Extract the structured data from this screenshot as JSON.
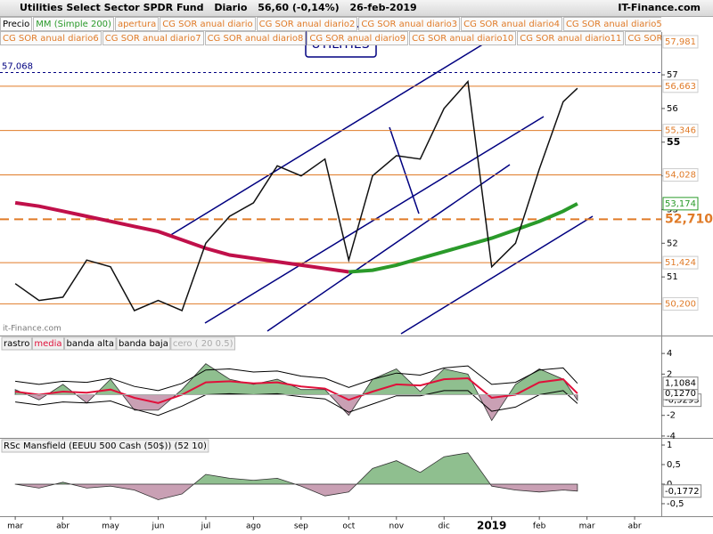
{
  "header": {
    "title": "Utilities Select Sector SPDR Fund",
    "period": "Diario",
    "quote": "56,60 (-0,14%)",
    "date": "26-feb-2019",
    "source": "IT-Finance.com"
  },
  "tab_color": "#e07b28",
  "tabs": [
    [
      "apertura",
      "CG SOR anual diario",
      "CG SOR anual diario2",
      "CG SOR anual diario3",
      "CG SOR anual diario4",
      "CG SOR anual diario5"
    ],
    [
      "CG SOR anual diario6",
      "CG SOR anual diario7",
      "CG SOR anual diario8",
      "CG SOR anual diario9",
      "CG SOR anual diario10",
      "CG SOR anual diario11",
      "CG SOR anual"
    ]
  ],
  "chart_data": [
    {
      "type": "line",
      "logo": "UTILITIES",
      "watermark": "it-Finance.com",
      "x": [
        0,
        0.5,
        1,
        1.5,
        2,
        2.5,
        3,
        3.5,
        4,
        4.5,
        5,
        5.5,
        6,
        6.5,
        7,
        7.5,
        8,
        8.5,
        9,
        9.5,
        10,
        10.5,
        11,
        11.5,
        11.8
      ],
      "xlim": [
        -0.32,
        13.56
      ],
      "ylim": [
        49.26,
        58.27
      ],
      "yticks": [
        51,
        52,
        53,
        54,
        55,
        56,
        57
      ],
      "series": [
        {
          "name": "Precio",
          "color": "#111111",
          "values": [
            50.8,
            50.3,
            50.4,
            51.5,
            51.3,
            50.0,
            50.3,
            50.0,
            52.0,
            52.8,
            53.2,
            54.3,
            54.0,
            54.5,
            51.5,
            54.0,
            54.6,
            54.5,
            56.0,
            56.8,
            51.3,
            52.0,
            54.2,
            56.2,
            56.6
          ]
        },
        {
          "name": "MM (Simple 200)",
          "color": "#c0104a",
          "color_rising": "#2a9a2a",
          "values": [
            53.2,
            53.1,
            52.95,
            52.8,
            52.65,
            52.5,
            52.35,
            52.1,
            51.85,
            51.65,
            51.55,
            51.45,
            51.35,
            51.25,
            51.15,
            51.2,
            51.35,
            51.55,
            51.75,
            51.95,
            52.15,
            52.4,
            52.65,
            52.95,
            53.174
          ]
        }
      ],
      "levels": [
        {
          "value": 57.981,
          "label": "57,981",
          "color": "#e07b28",
          "line": "none",
          "side": "right"
        },
        {
          "value": 57.068,
          "label": "57,068",
          "color": "#000080",
          "line": "dotted",
          "side": "left"
        },
        {
          "value": 56.663,
          "label": "56,663",
          "color": "#e07b28",
          "line": "solid",
          "side": "right"
        },
        {
          "value": 55.346,
          "label": "55,346",
          "color": "#e07b28",
          "line": "solid",
          "side": "right"
        },
        {
          "value": 54.028,
          "label": "54,028",
          "color": "#e07b28",
          "line": "solid",
          "side": "right"
        },
        {
          "value": 53.174,
          "label": "53,174",
          "color": "#2a9a2a",
          "line": "none",
          "side": "right",
          "boxed": true
        },
        {
          "value": 52.71,
          "label": "52,710",
          "color": "#e07b28",
          "line": "dashed",
          "side": "right",
          "emphasis": true
        },
        {
          "value": 51.424,
          "label": "51,424",
          "color": "#e07b28",
          "line": "solid",
          "side": "right"
        },
        {
          "value": 50.2,
          "label": "50,200",
          "color": "#e07b28",
          "line": "solid",
          "side": "right"
        }
      ]
    },
    {
      "type": "area",
      "x": [
        0,
        0.5,
        1,
        1.5,
        2,
        2.5,
        3,
        3.5,
        4,
        4.5,
        5,
        5.5,
        6,
        6.5,
        7,
        7.5,
        8,
        8.5,
        9,
        9.5,
        10,
        10.5,
        11,
        11.5,
        11.8
      ],
      "xlim": [
        -0.32,
        13.56
      ],
      "ylim": [
        -4.18,
        5.65
      ],
      "yticks": [
        4,
        2,
        -2,
        -4
      ],
      "series": [
        {
          "name": "rastro",
          "color": "#8fbf8f",
          "color_negative": "#c9a0b4",
          "values": [
            0.5,
            -0.5,
            1,
            -0.8,
            1.5,
            -1.5,
            -1.5,
            0.5,
            3,
            1.5,
            1,
            1.5,
            0.5,
            0.5,
            -2,
            1.5,
            2.5,
            0.3,
            2.5,
            2,
            -2.5,
            1,
            2.5,
            1.5,
            -0.5293
          ],
          "last_label": "-0,5293"
        },
        {
          "name": "media",
          "color": "#e0103a",
          "values": [
            0.3,
            0,
            0.3,
            0.2,
            0.5,
            -0.3,
            -0.8,
            0,
            1.2,
            1.3,
            1.1,
            1.2,
            0.8,
            0.6,
            -0.5,
            0.3,
            1,
            0.9,
            1.5,
            1.6,
            -0.3,
            0,
            1.2,
            1.5,
            0.127
          ],
          "last_label": "0,1270"
        },
        {
          "name": "banda alta",
          "color": "#000000",
          "values": [
            1.3,
            1,
            1.3,
            1.2,
            1.6,
            0.8,
            0.4,
            1.1,
            2.4,
            2.5,
            2.2,
            2.3,
            1.8,
            1.6,
            0.7,
            1.5,
            2.1,
            1.9,
            2.6,
            2.8,
            1,
            1.2,
            2.4,
            2.6,
            1.1084
          ],
          "last_label": "1,1084"
        },
        {
          "name": "banda baja",
          "color": "#000000",
          "values": [
            -0.7,
            -1,
            -0.7,
            -0.8,
            -0.6,
            -1.4,
            -2,
            -1.1,
            0,
            0.1,
            0,
            0.1,
            -0.2,
            -0.4,
            -1.7,
            -0.9,
            -0.1,
            -0.1,
            0.4,
            0.4,
            -1.6,
            -1.2,
            0,
            0.4,
            -0.854
          ]
        },
        {
          "name": "cero ( 20 0.5)",
          "color": "#aaaaaa",
          "values": [
            0,
            0,
            0,
            0,
            0,
            0,
            0,
            0,
            0,
            0,
            0,
            0,
            0,
            0,
            0,
            0,
            0,
            0,
            0,
            0,
            0,
            0,
            0,
            0,
            0
          ]
        }
      ]
    },
    {
      "type": "area",
      "title": "RSc Mansfield (EEUU 500 Cash (50$)) (52 10)",
      "x": [
        0,
        0.5,
        1,
        1.5,
        2,
        2.5,
        3,
        3.5,
        4,
        4.5,
        5,
        5.5,
        6,
        6.5,
        7,
        7.5,
        8,
        8.5,
        9,
        9.5,
        10,
        10.5,
        11,
        11.5,
        11.8
      ],
      "xlim": [
        -0.32,
        13.56
      ],
      "ylim": [
        -0.82,
        1.16
      ],
      "yticks": [
        1,
        {
          "value": 0.5,
          "label": "0,5"
        },
        0,
        {
          "value": -0.5,
          "label": "-0,5"
        }
      ],
      "xticks": [
        {
          "value": 0,
          "label": "mar"
        },
        {
          "value": 1,
          "label": "abr"
        },
        {
          "value": 2,
          "label": "may"
        },
        {
          "value": 3,
          "label": "jun"
        },
        {
          "value": 4,
          "label": "jul"
        },
        {
          "value": 5,
          "label": "ago"
        },
        {
          "value": 6,
          "label": "sep"
        },
        {
          "value": 7,
          "label": "oct"
        },
        {
          "value": 8,
          "label": "nov"
        },
        {
          "value": 9,
          "label": "dic"
        },
        {
          "value": 10,
          "label": "2019"
        },
        {
          "value": 11,
          "label": "feb"
        },
        {
          "value": 12,
          "label": "mar"
        },
        {
          "value": 13,
          "label": "abr"
        }
      ],
      "series": [
        {
          "color": "#8fbf8f",
          "color_negative": "#c9a0b4",
          "values": [
            0,
            -0.1,
            0.05,
            -0.1,
            -0.05,
            -0.15,
            -0.4,
            -0.25,
            0.25,
            0.15,
            0.1,
            0.15,
            -0.05,
            -0.3,
            -0.2,
            0.4,
            0.6,
            0.3,
            0.7,
            0.8,
            -0.05,
            -0.15,
            -0.2,
            -0.15,
            -0.1772
          ],
          "last_label": "-0,1772"
        }
      ]
    }
  ]
}
